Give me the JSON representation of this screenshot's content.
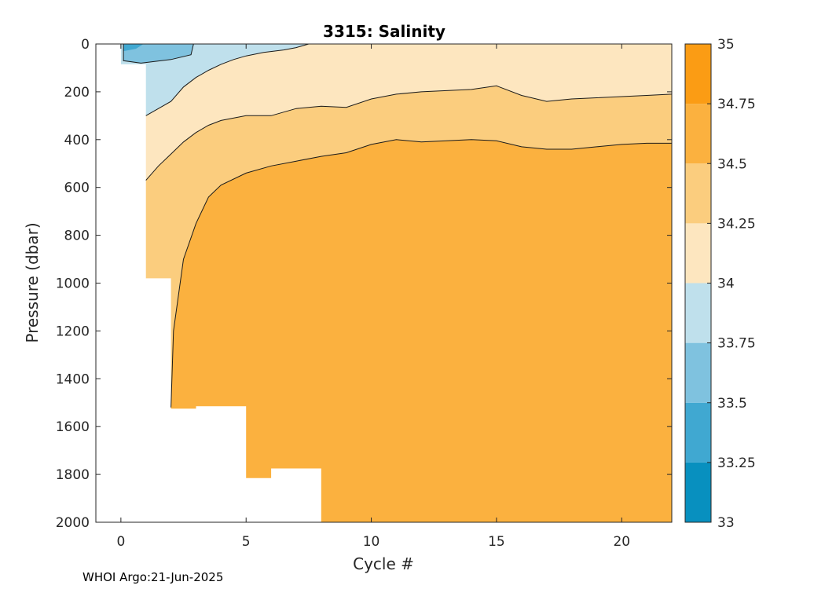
{
  "chart_data": {
    "type": "contour",
    "title": "3315:  Salinity",
    "xlabel": "Cycle #",
    "ylabel": "Pressure (dbar)",
    "xlim": [
      -1,
      22
    ],
    "ylim": [
      2000,
      0
    ],
    "y_reversed": true,
    "xticks": [
      0,
      5,
      10,
      15,
      20
    ],
    "yticks": [
      0,
      200,
      400,
      600,
      800,
      1000,
      1200,
      1400,
      1600,
      1800,
      2000
    ],
    "colorbar": {
      "levels": [
        33,
        33.25,
        33.5,
        33.75,
        34,
        34.25,
        34.5,
        34.75,
        35
      ],
      "tick_labels": [
        "33",
        "33.25",
        "33.5",
        "33.75",
        "34",
        "34.25",
        "34.5",
        "34.75",
        "35"
      ],
      "colors": [
        "#0890bf",
        "#40a8d1",
        "#7fc2df",
        "#bfe0ec",
        "#fde6bf",
        "#fbcd7e",
        "#fbb13f",
        "#fb9c14"
      ]
    },
    "profile_max_pressure": [
      {
        "cycle": 0,
        "max_pressure": 80
      },
      {
        "cycle": 1,
        "max_pressure": 980
      },
      {
        "cycle": 2,
        "max_pressure": 1520
      },
      {
        "cycle": 3,
        "max_pressure": 1510
      },
      {
        "cycle": 4,
        "max_pressure": 1510
      },
      {
        "cycle": 5,
        "max_pressure": 1810
      },
      {
        "cycle": 6,
        "max_pressure": 1770
      },
      {
        "cycle": 7,
        "max_pressure": 1770
      },
      {
        "cycle": 8,
        "max_pressure": 2000
      },
      {
        "cycle": 22,
        "max_pressure": 2000
      }
    ],
    "isohalines": [
      {
        "salinity": 33.75,
        "points": [
          [
            0.1,
            0
          ],
          [
            0.1,
            70
          ],
          [
            0.8,
            80
          ],
          [
            2,
            65
          ],
          [
            2.8,
            45
          ],
          [
            2.9,
            0
          ]
        ]
      },
      {
        "salinity": 34.0,
        "points": [
          [
            1,
            300
          ],
          [
            1.5,
            270
          ],
          [
            2,
            240
          ],
          [
            2.5,
            180
          ],
          [
            3,
            140
          ],
          [
            3.5,
            110
          ],
          [
            4,
            85
          ],
          [
            4.5,
            65
          ],
          [
            5,
            50
          ],
          [
            5.7,
            35
          ],
          [
            6.5,
            25
          ],
          [
            7,
            15
          ],
          [
            7.5,
            0
          ]
        ]
      },
      {
        "salinity": 34.25,
        "points": [
          [
            1,
            570
          ],
          [
            1.5,
            510
          ],
          [
            2,
            460
          ],
          [
            2.5,
            410
          ],
          [
            3,
            370
          ],
          [
            3.5,
            340
          ],
          [
            4,
            320
          ],
          [
            5,
            300
          ],
          [
            6,
            300
          ],
          [
            7,
            270
          ],
          [
            8,
            260
          ],
          [
            9,
            265
          ],
          [
            10,
            230
          ],
          [
            11,
            210
          ],
          [
            12,
            200
          ],
          [
            13,
            195
          ],
          [
            14,
            190
          ],
          [
            15,
            175
          ],
          [
            16,
            215
          ],
          [
            17,
            240
          ],
          [
            18,
            230
          ],
          [
            19,
            225
          ],
          [
            20,
            220
          ],
          [
            21,
            215
          ],
          [
            22,
            210
          ]
        ]
      },
      {
        "salinity": 34.5,
        "points": [
          [
            2,
            1520
          ],
          [
            2.1,
            1200
          ],
          [
            2.5,
            900
          ],
          [
            3,
            750
          ],
          [
            3.5,
            640
          ],
          [
            4,
            590
          ],
          [
            5,
            540
          ],
          [
            6,
            510
          ],
          [
            7,
            490
          ],
          [
            8,
            470
          ],
          [
            9,
            455
          ],
          [
            10,
            420
          ],
          [
            11,
            400
          ],
          [
            12,
            410
          ],
          [
            13,
            405
          ],
          [
            14,
            400
          ],
          [
            15,
            405
          ],
          [
            16,
            430
          ],
          [
            17,
            440
          ],
          [
            18,
            440
          ],
          [
            19,
            430
          ],
          [
            20,
            420
          ],
          [
            21,
            415
          ],
          [
            22,
            415
          ]
        ]
      }
    ]
  },
  "footer": {
    "credit": "WHOI Argo:21-Jun-2025"
  }
}
